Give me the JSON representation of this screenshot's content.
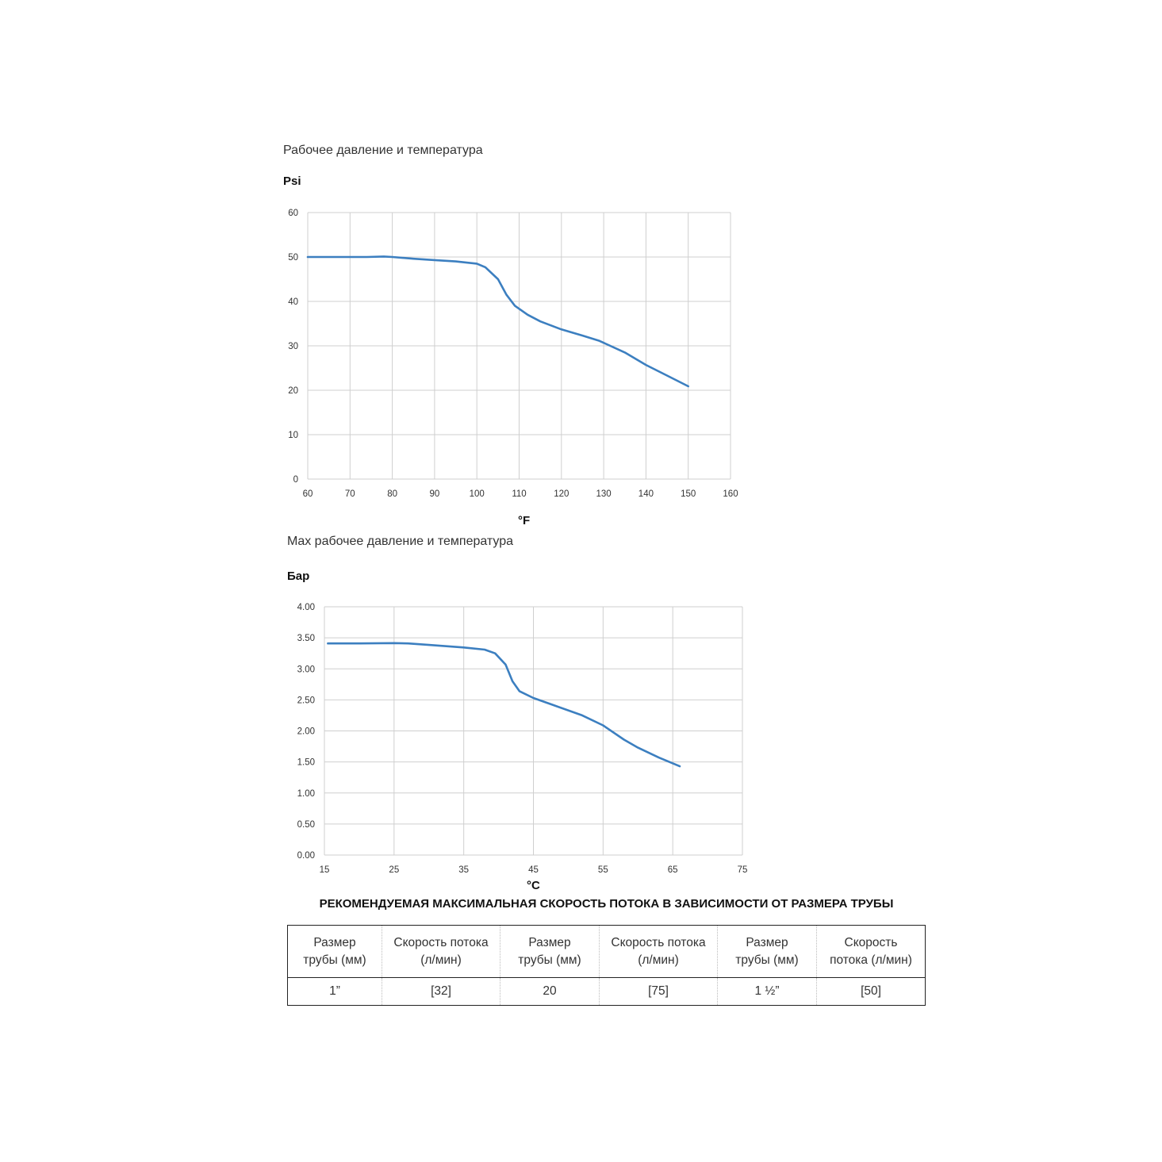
{
  "charts": {
    "psi": {
      "caption": "Рабочее давление и температура",
      "unit_y": "Psi",
      "unit_x": "°F"
    },
    "bar": {
      "caption": "Max рабочее давление и температура",
      "unit_y": "Бар",
      "unit_x": "°C"
    }
  },
  "chart_data": [
    {
      "type": "line",
      "title": "Рабочее давление и температура",
      "ylabel": "Psi",
      "xlabel": "°F",
      "xlim": [
        60,
        160
      ],
      "ylim": [
        0,
        60
      ],
      "x_ticks": [
        "60",
        "70",
        "80",
        "90",
        "100",
        "110",
        "120",
        "130",
        "140",
        "150",
        "160"
      ],
      "y_ticks": [
        "0",
        "10",
        "20",
        "30",
        "40",
        "50",
        "60"
      ],
      "grid": true,
      "color": "#3c7fc0",
      "series": [
        {
          "points": [
            [
              60,
              50
            ],
            [
              70,
              50
            ],
            [
              74,
              50
            ],
            [
              78,
              50.1
            ],
            [
              80,
              50
            ],
            [
              85,
              49.6
            ],
            [
              90,
              49.3
            ],
            [
              95,
              49
            ],
            [
              100,
              48.5
            ],
            [
              102,
              47.7
            ],
            [
              105,
              45
            ],
            [
              107,
              41.5
            ],
            [
              109,
              39
            ],
            [
              112,
              37
            ],
            [
              115,
              35.5
            ],
            [
              120,
              33.7
            ],
            [
              125,
              32.3
            ],
            [
              129,
              31.1
            ],
            [
              135,
              28.5
            ],
            [
              140,
              25.7
            ],
            [
              145,
              23.3
            ],
            [
              150,
              20.9
            ]
          ]
        }
      ]
    },
    {
      "type": "line",
      "title": "Max рабочее давление и температура",
      "ylabel": "Бар",
      "xlabel": "°C",
      "xlim": [
        15,
        75
      ],
      "ylim": [
        0,
        4
      ],
      "x_ticks": [
        "15",
        "25",
        "35",
        "45",
        "55",
        "65",
        "75"
      ],
      "y_ticks": [
        "0.00",
        "0.50",
        "1.00",
        "1.50",
        "2.00",
        "2.50",
        "3.00",
        "3.50",
        "4.00"
      ],
      "grid": true,
      "color": "#3c7fc0",
      "series": [
        {
          "points": [
            [
              15.5,
              3.41
            ],
            [
              20,
              3.41
            ],
            [
              25,
              3.415
            ],
            [
              27,
              3.41
            ],
            [
              30,
              3.385
            ],
            [
              35,
              3.345
            ],
            [
              38,
              3.31
            ],
            [
              39.5,
              3.25
            ],
            [
              41,
              3.07
            ],
            [
              42,
              2.8
            ],
            [
              43,
              2.64
            ],
            [
              45,
              2.53
            ],
            [
              48,
              2.41
            ],
            [
              52,
              2.25
            ],
            [
              55,
              2.09
            ],
            [
              58,
              1.86
            ],
            [
              60,
              1.73
            ],
            [
              63,
              1.57
            ],
            [
              66,
              1.43
            ]
          ]
        }
      ]
    }
  ],
  "table": {
    "title": "РЕКОМЕНДУЕМАЯ МАКСИМАЛЬНАЯ СКОРОСТЬ ПОТОКА В ЗАВИСИМОСТИ ОТ РАЗМЕРА ТРУБЫ",
    "headers": [
      [
        "Размер",
        "трубы (мм)"
      ],
      [
        "Скорость потока",
        "(л/мин)"
      ],
      [
        "Размер",
        "трубы (мм)"
      ],
      [
        "Скорость потока",
        "(л/мин)"
      ],
      [
        "Размер",
        "трубы (мм)"
      ],
      [
        "Скорость",
        "потока (л/мин)"
      ]
    ],
    "cells": [
      "1”",
      "[32]",
      "20",
      "[75]",
      "1 ½”",
      "[50]"
    ]
  }
}
